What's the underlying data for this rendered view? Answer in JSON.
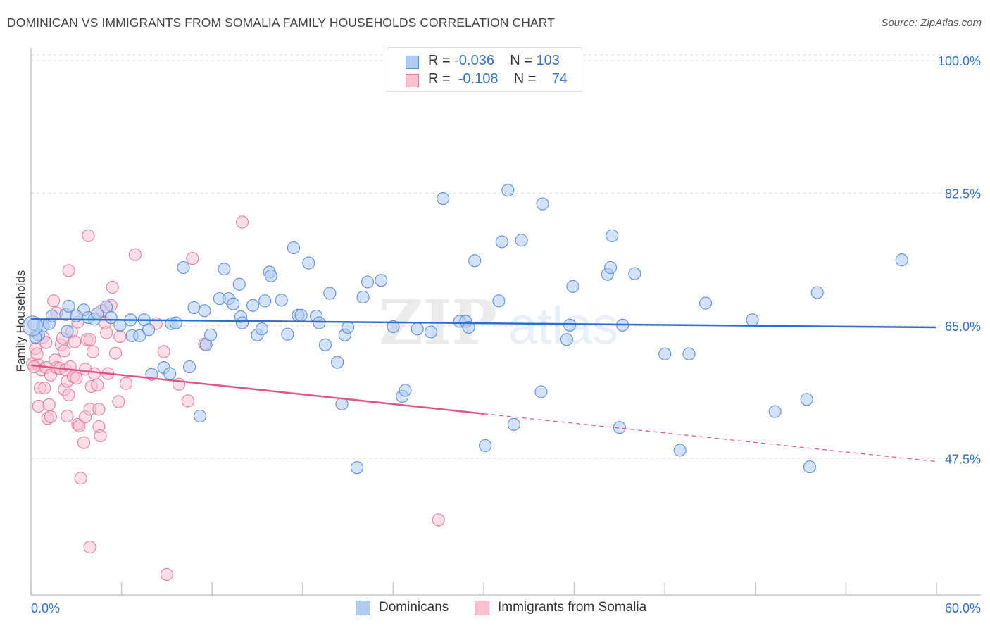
{
  "title": "DOMINICAN VS IMMIGRANTS FROM SOMALIA FAMILY HOUSEHOLDS CORRELATION CHART",
  "source": "Source: ZipAtlas.com",
  "watermark": {
    "zip": "ZIP",
    "atlas": "atlas"
  },
  "legend_top": {
    "rows": [
      {
        "r_label": "R = ",
        "r_value": "-0.036",
        "n_label": "N = ",
        "n_value": "103"
      },
      {
        "r_label": "R = ",
        "r_value": "-0.108",
        "n_label": "N = ",
        "n_value": "74"
      }
    ]
  },
  "colors": {
    "dominicans_fill": "#aecbf2",
    "dominicans_stroke": "#5b8fd8",
    "dominicans_line": "#2a6fd0",
    "somalia_fill": "#f7c2d2",
    "somalia_stroke": "#e27f9f",
    "somalia_line": "#e05585",
    "tick_label": "#3370c8",
    "grid": "#dddddd"
  },
  "chart_data": {
    "type": "scatter",
    "title": "DOMINICAN VS IMMIGRANTS FROM SOMALIA FAMILY HOUSEHOLDS CORRELATION CHART",
    "xlabel": "",
    "ylabel": "Family Households",
    "xlim": [
      0,
      60
    ],
    "ylim": [
      29.5,
      101.5
    ],
    "x_tick_labels": [
      "0.0%",
      "60.0%"
    ],
    "y_ticks": [
      47.5,
      65.0,
      82.5,
      100.0
    ],
    "y_tick_labels": [
      "47.5%",
      "65.0%",
      "82.5%",
      "100.0%"
    ],
    "grid": true,
    "legend_position": "top-center and bottom",
    "series": [
      {
        "name": "Dominicans",
        "R": -0.036,
        "N": 103,
        "trend": {
          "x": [
            0,
            60
          ],
          "y": [
            65.9,
            64.8
          ],
          "style": "solid"
        },
        "points": [
          [
            0.2,
            65.2
          ],
          [
            0.5,
            63.8
          ],
          [
            0.8,
            65.0
          ],
          [
            0.3,
            63.5
          ],
          [
            1.2,
            65.3
          ],
          [
            1.4,
            66.3
          ],
          [
            2.3,
            66.5
          ],
          [
            2.5,
            67.6
          ],
          [
            3.5,
            67.1
          ],
          [
            2.4,
            64.3
          ],
          [
            3.0,
            66.3
          ],
          [
            3.8,
            66.1
          ],
          [
            4.2,
            65.9
          ],
          [
            4.4,
            66.6
          ],
          [
            5.0,
            67.5
          ],
          [
            5.3,
            66.1
          ],
          [
            5.9,
            65.1
          ],
          [
            6.6,
            65.8
          ],
          [
            6.7,
            63.7
          ],
          [
            7.2,
            63.7
          ],
          [
            7.5,
            65.8
          ],
          [
            7.8,
            64.5
          ],
          [
            8.0,
            58.6
          ],
          [
            8.8,
            59.5
          ],
          [
            9.2,
            58.7
          ],
          [
            9.3,
            65.3
          ],
          [
            9.6,
            65.4
          ],
          [
            10.1,
            72.7
          ],
          [
            10.5,
            59.6
          ],
          [
            10.8,
            67.4
          ],
          [
            11.2,
            53.1
          ],
          [
            11.5,
            67.0
          ],
          [
            11.6,
            62.5
          ],
          [
            11.9,
            63.8
          ],
          [
            12.5,
            68.6
          ],
          [
            12.8,
            72.5
          ],
          [
            13.1,
            68.6
          ],
          [
            13.4,
            67.9
          ],
          [
            13.8,
            70.5
          ],
          [
            13.9,
            66.2
          ],
          [
            14.0,
            65.4
          ],
          [
            14.7,
            67.7
          ],
          [
            15.0,
            63.8
          ],
          [
            15.3,
            64.6
          ],
          [
            15.5,
            68.3
          ],
          [
            15.8,
            72.1
          ],
          [
            15.9,
            71.6
          ],
          [
            16.6,
            68.4
          ],
          [
            17.0,
            63.9
          ],
          [
            17.4,
            75.3
          ],
          [
            17.7,
            66.4
          ],
          [
            17.9,
            66.4
          ],
          [
            18.4,
            73.3
          ],
          [
            18.9,
            66.3
          ],
          [
            19.1,
            65.4
          ],
          [
            19.5,
            62.5
          ],
          [
            19.8,
            69.3
          ],
          [
            20.3,
            60.2
          ],
          [
            20.6,
            54.7
          ],
          [
            20.8,
            63.8
          ],
          [
            21.0,
            64.8
          ],
          [
            21.6,
            46.3
          ],
          [
            22.0,
            68.8
          ],
          [
            22.3,
            70.8
          ],
          [
            23.2,
            71.0
          ],
          [
            24.0,
            64.9
          ],
          [
            24.6,
            55.7
          ],
          [
            24.8,
            56.5
          ],
          [
            25.6,
            64.6
          ],
          [
            26.5,
            64.2
          ],
          [
            27.3,
            81.8
          ],
          [
            28.4,
            65.6
          ],
          [
            28.8,
            65.6
          ],
          [
            29.0,
            64.8
          ],
          [
            29.4,
            73.6
          ],
          [
            30.1,
            49.2
          ],
          [
            31.0,
            68.3
          ],
          [
            31.2,
            76.1
          ],
          [
            31.6,
            82.9
          ],
          [
            32.0,
            52.0
          ],
          [
            32.5,
            76.3
          ],
          [
            33.8,
            56.3
          ],
          [
            33.9,
            81.1
          ],
          [
            35.5,
            63.2
          ],
          [
            35.7,
            65.1
          ],
          [
            35.9,
            70.2
          ],
          [
            38.2,
            71.8
          ],
          [
            38.4,
            72.7
          ],
          [
            38.5,
            76.9
          ],
          [
            39.0,
            51.6
          ],
          [
            39.2,
            65.1
          ],
          [
            40.0,
            71.9
          ],
          [
            42.0,
            61.3
          ],
          [
            43.0,
            48.6
          ],
          [
            43.6,
            61.3
          ],
          [
            44.7,
            68.0
          ],
          [
            47.8,
            65.8
          ],
          [
            49.3,
            53.7
          ],
          [
            51.4,
            55.3
          ],
          [
            51.6,
            46.4
          ],
          [
            52.1,
            69.4
          ],
          [
            57.7,
            73.7
          ],
          [
            0.1,
            65.0
          ]
        ]
      },
      {
        "name": "Immigrants from Somalia",
        "R": -0.108,
        "N": 74,
        "trend": {
          "x": [
            0,
            30
          ],
          "y": [
            59.8,
            53.4
          ],
          "dashed_extension": {
            "x": [
              30,
              60
            ],
            "y": [
              53.4,
              47.1
            ]
          }
        },
        "points": [
          [
            0.1,
            60.0
          ],
          [
            0.3,
            62.0
          ],
          [
            0.4,
            61.3
          ],
          [
            0.5,
            59.8
          ],
          [
            0.5,
            54.4
          ],
          [
            0.6,
            56.8
          ],
          [
            0.7,
            59.2
          ],
          [
            0.8,
            63.5
          ],
          [
            0.9,
            56.8
          ],
          [
            1.0,
            62.8
          ],
          [
            1.0,
            59.5
          ],
          [
            1.1,
            52.8
          ],
          [
            1.2,
            54.6
          ],
          [
            1.3,
            58.5
          ],
          [
            1.3,
            53.0
          ],
          [
            1.5,
            68.3
          ],
          [
            1.6,
            60.5
          ],
          [
            1.7,
            59.5
          ],
          [
            1.7,
            66.7
          ],
          [
            1.9,
            59.4
          ],
          [
            2.0,
            62.5
          ],
          [
            2.1,
            63.4
          ],
          [
            2.2,
            61.7
          ],
          [
            2.2,
            56.6
          ],
          [
            2.3,
            59.2
          ],
          [
            2.4,
            57.7
          ],
          [
            2.4,
            53.1
          ],
          [
            2.5,
            55.9
          ],
          [
            2.5,
            72.3
          ],
          [
            2.6,
            59.6
          ],
          [
            2.7,
            64.2
          ],
          [
            2.8,
            58.3
          ],
          [
            2.9,
            62.9
          ],
          [
            3.1,
            65.5
          ],
          [
            3.1,
            52.0
          ],
          [
            3.2,
            51.8
          ],
          [
            3.3,
            44.9
          ],
          [
            3.5,
            49.6
          ],
          [
            3.6,
            53.0
          ],
          [
            3.6,
            59.3
          ],
          [
            3.7,
            63.2
          ],
          [
            3.8,
            76.9
          ],
          [
            3.9,
            63.2
          ],
          [
            3.9,
            35.8
          ],
          [
            3.9,
            54.0
          ],
          [
            4.0,
            57.0
          ],
          [
            4.1,
            61.6
          ],
          [
            4.2,
            58.7
          ],
          [
            4.4,
            57.2
          ],
          [
            4.5,
            54.0
          ],
          [
            4.5,
            51.7
          ],
          [
            4.6,
            50.5
          ],
          [
            4.7,
            67.0
          ],
          [
            4.9,
            65.4
          ],
          [
            5.0,
            64.1
          ],
          [
            5.1,
            58.7
          ],
          [
            5.3,
            67.7
          ],
          [
            5.4,
            70.1
          ],
          [
            5.6,
            61.4
          ],
          [
            5.8,
            55.0
          ],
          [
            5.9,
            63.6
          ],
          [
            6.3,
            57.4
          ],
          [
            6.9,
            74.4
          ],
          [
            8.3,
            65.3
          ],
          [
            8.8,
            61.6
          ],
          [
            9.0,
            32.2
          ],
          [
            9.8,
            57.3
          ],
          [
            10.4,
            55.1
          ],
          [
            10.7,
            73.9
          ],
          [
            11.5,
            62.6
          ],
          [
            14.0,
            78.7
          ],
          [
            27.0,
            39.4
          ],
          [
            0.2,
            59.6
          ],
          [
            3.0,
            58.1
          ]
        ]
      }
    ]
  },
  "legend_bottom": {
    "items": [
      "Dominicans",
      "Immigrants from Somalia"
    ]
  }
}
